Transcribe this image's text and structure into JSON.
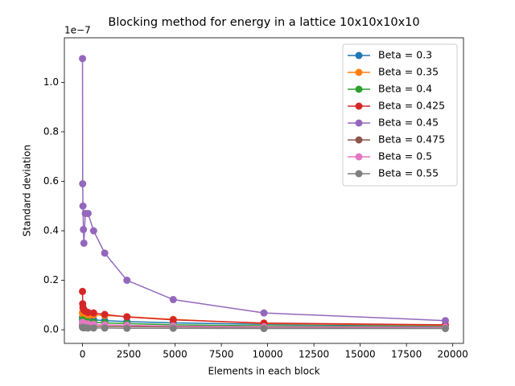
{
  "chart_data": {
    "type": "line",
    "title": "Blocking method for energy in a lattice 10x10x10x10",
    "x_label": "Elements in each block",
    "y_label": "Standard deviation",
    "y_offset_label": "1e−7",
    "x": [
      1,
      10,
      25,
      50,
      75,
      150,
      300,
      600,
      1200,
      2400,
      4900,
      9800,
      19600
    ],
    "series": [
      {
        "name": "Beta = 0.3",
        "color": "#1f77b4",
        "values": [
          0.05,
          0.048,
          0.046,
          0.045,
          0.044,
          0.043,
          0.042,
          0.04,
          0.037,
          0.033,
          0.028,
          0.022,
          0.015
        ]
      },
      {
        "name": "Beta = 0.35",
        "color": "#ff7f0e",
        "values": [
          0.07,
          0.065,
          0.06,
          0.058,
          0.056,
          0.055,
          0.054,
          0.06,
          0.058,
          0.053,
          0.042,
          0.025,
          0.018
        ]
      },
      {
        "name": "Beta = 0.4",
        "color": "#2ca02c",
        "values": [
          0.04,
          0.038,
          0.036,
          0.035,
          0.034,
          0.033,
          0.032,
          0.03,
          0.028,
          0.025,
          0.02,
          0.016,
          0.012
        ]
      },
      {
        "name": "Beta = 0.425",
        "color": "#d62728",
        "values": [
          0.155,
          0.105,
          0.09,
          0.085,
          0.08,
          0.075,
          0.07,
          0.068,
          0.062,
          0.052,
          0.04,
          0.027,
          0.02
        ]
      },
      {
        "name": "Beta = 0.45",
        "color": "#9467bd",
        "values": [
          1.096,
          0.59,
          0.5,
          0.405,
          0.35,
          0.47,
          0.47,
          0.4,
          0.31,
          0.2,
          0.122,
          0.068,
          0.037
        ]
      },
      {
        "name": "Beta = 0.475",
        "color": "#8c564b",
        "values": [
          0.02,
          0.019,
          0.018,
          0.017,
          0.016,
          0.016,
          0.015,
          0.015,
          0.014,
          0.013,
          0.012,
          0.01,
          0.008
        ]
      },
      {
        "name": "Beta = 0.5",
        "color": "#e377c2",
        "values": [
          0.03,
          0.029,
          0.028,
          0.027,
          0.026,
          0.025,
          0.024,
          0.022,
          0.02,
          0.018,
          0.015,
          0.012,
          0.01
        ]
      },
      {
        "name": "Beta = 0.55",
        "color": "#7f7f7f",
        "values": [
          0.01,
          0.009,
          0.009,
          0.008,
          0.008,
          0.008,
          0.007,
          0.007,
          0.007,
          0.006,
          0.006,
          0.005,
          0.005
        ]
      }
    ],
    "xlim": [
      -979,
      20580
    ],
    "ylim": [
      -0.055,
      1.18
    ],
    "xticks": [
      0,
      2500,
      5000,
      7500,
      10000,
      12500,
      15000,
      17500,
      20000
    ],
    "yticks": [
      {
        "value": 0,
        "label": "0.0"
      },
      {
        "value": 0.2,
        "label": "0.2"
      },
      {
        "value": 0.4,
        "label": "0.4"
      },
      {
        "value": 0.6,
        "label": "0.6"
      },
      {
        "value": 0.8,
        "label": "0.8"
      },
      {
        "value": 1.0,
        "label": "1.0"
      }
    ],
    "legend": "upper right",
    "grid": false
  }
}
